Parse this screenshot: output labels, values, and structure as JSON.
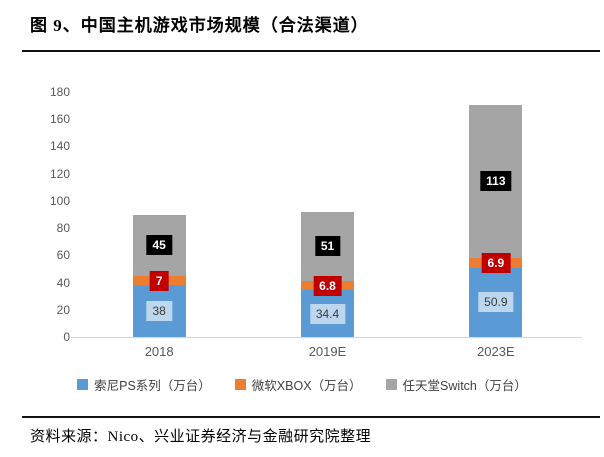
{
  "figure": {
    "title": "图 9、中国主机游戏市场规模（合法渠道）",
    "source": "资料来源：Nico、兴业证券经济与金融研究院整理"
  },
  "chart_data": {
    "type": "bar",
    "stacked": true,
    "title": "中国主机游戏市场规模（合法渠道）",
    "categories": [
      "2018",
      "2019E",
      "2023E"
    ],
    "series": [
      {
        "name": "索尼PS系列（万台）",
        "values": [
          38,
          34.4,
          50.9
        ],
        "labels": [
          "38",
          "34.4",
          "50.9"
        ],
        "color": "#5B9BD5",
        "label_bg": "#BDD7EE",
        "label_text": "#3B3B3B",
        "label_bold": false
      },
      {
        "name": "微软XBOX（万台）",
        "values": [
          7,
          6.8,
          6.9
        ],
        "labels": [
          "7",
          "6.8",
          "6.9"
        ],
        "color": "#ED7D31",
        "label_bg": "#C00000",
        "label_text": "#FFFFFF",
        "label_bold": true
      },
      {
        "name": "任天堂Switch（万台）",
        "values": [
          45,
          51,
          113
        ],
        "labels": [
          "45",
          "51",
          "113"
        ],
        "color": "#A5A5A5",
        "label_bg": "#000000",
        "label_text": "#FFFFFF",
        "label_bold": true
      }
    ],
    "ylim": [
      0,
      180
    ],
    "yticks": [
      0,
      20,
      40,
      60,
      80,
      100,
      120,
      140,
      160,
      180
    ],
    "grid": false,
    "legend_position": "bottom",
    "axis_color": "#D6D6D6",
    "tick_color": "#595959"
  }
}
